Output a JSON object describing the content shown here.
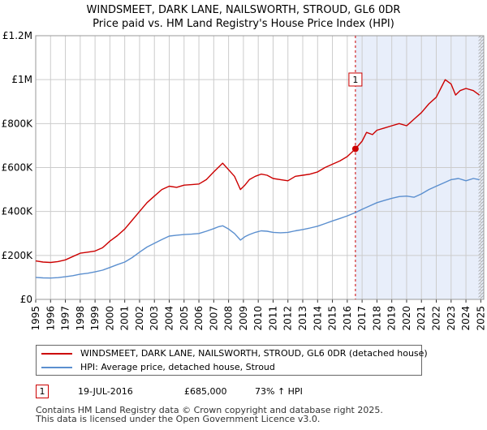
{
  "title_line1": "WINDSMEET, DARK LANE, NAILSWORTH, STROUD, GL6 0DR",
  "title_line2": "Price paid vs. HM Land Registry's House Price Index (HPI)",
  "colors": {
    "property": "#cc0000",
    "hpi": "#5b8fcf",
    "shade": "#e8eefa",
    "grid": "#cccccc"
  },
  "chart_data": {
    "type": "line",
    "x_range": [
      1995,
      2025.2
    ],
    "ylim": [
      0,
      1200000
    ],
    "y_ticks": [
      {
        "value": 0,
        "label": "£0"
      },
      {
        "value": 200000,
        "label": "£200K"
      },
      {
        "value": 400000,
        "label": "£400K"
      },
      {
        "value": 600000,
        "label": "£600K"
      },
      {
        "value": 800000,
        "label": "£800K"
      },
      {
        "value": 1000000,
        "label": "£1M"
      },
      {
        "value": 1200000,
        "label": "£1.2M"
      }
    ],
    "x_ticks": [
      "1995",
      "1996",
      "1997",
      "1998",
      "1999",
      "2000",
      "2001",
      "2002",
      "2003",
      "2004",
      "2005",
      "2006",
      "2007",
      "2008",
      "2009",
      "2010",
      "2011",
      "2012",
      "2013",
      "2014",
      "2015",
      "2016",
      "2017",
      "2018",
      "2019",
      "2020",
      "2021",
      "2022",
      "2023",
      "2024",
      "2025"
    ],
    "shaded_from": 2016.55,
    "hatch_from": 2024.85,
    "series": [
      {
        "name": "WINDSMEET, DARK LANE, NAILSWORTH, STROUD, GL6 0DR (detached house)",
        "color": "#cc0000",
        "x": [
          1995.0,
          1995.5,
          1996.0,
          1996.5,
          1997.0,
          1997.5,
          1998.0,
          1998.5,
          1999.0,
          1999.5,
          2000.0,
          2000.5,
          2001.0,
          2001.5,
          2002.0,
          2002.5,
          2003.0,
          2003.5,
          2004.0,
          2004.5,
          2005.0,
          2005.5,
          2006.0,
          2006.5,
          2007.0,
          2007.3,
          2007.6,
          2008.0,
          2008.4,
          2008.8,
          2009.1,
          2009.4,
          2009.8,
          2010.2,
          2010.6,
          2011.0,
          2011.5,
          2012.0,
          2012.5,
          2013.0,
          2013.5,
          2014.0,
          2014.5,
          2015.0,
          2015.5,
          2016.0,
          2016.55,
          2017.0,
          2017.3,
          2017.7,
          2018.0,
          2018.5,
          2019.0,
          2019.5,
          2020.0,
          2020.5,
          2021.0,
          2021.5,
          2022.0,
          2022.3,
          2022.6,
          2023.0,
          2023.3,
          2023.6,
          2024.0,
          2024.5,
          2024.9
        ],
        "values": [
          175000,
          170000,
          168000,
          172000,
          180000,
          195000,
          210000,
          215000,
          220000,
          235000,
          265000,
          290000,
          320000,
          360000,
          400000,
          440000,
          470000,
          500000,
          515000,
          510000,
          520000,
          522000,
          525000,
          545000,
          580000,
          600000,
          620000,
          590000,
          560000,
          500000,
          520000,
          545000,
          560000,
          570000,
          565000,
          550000,
          545000,
          540000,
          560000,
          565000,
          570000,
          580000,
          600000,
          615000,
          630000,
          650000,
          685000,
          720000,
          760000,
          750000,
          770000,
          780000,
          790000,
          800000,
          790000,
          820000,
          850000,
          890000,
          920000,
          960000,
          1000000,
          980000,
          930000,
          950000,
          960000,
          950000,
          930000
        ]
      },
      {
        "name": "HPI: Average price, detached house, Stroud",
        "color": "#5b8fcf",
        "x": [
          1995.0,
          1995.5,
          1996.0,
          1996.5,
          1997.0,
          1997.5,
          1998.0,
          1998.5,
          1999.0,
          1999.5,
          2000.0,
          2000.5,
          2001.0,
          2001.5,
          2002.0,
          2002.5,
          2003.0,
          2003.5,
          2004.0,
          2004.5,
          2005.0,
          2005.5,
          2006.0,
          2006.5,
          2007.0,
          2007.3,
          2007.6,
          2008.0,
          2008.4,
          2008.8,
          2009.1,
          2009.4,
          2009.8,
          2010.2,
          2010.6,
          2011.0,
          2011.5,
          2012.0,
          2012.5,
          2013.0,
          2013.5,
          2014.0,
          2014.5,
          2015.0,
          2015.5,
          2016.0,
          2016.55,
          2017.0,
          2017.5,
          2018.0,
          2018.5,
          2019.0,
          2019.5,
          2020.0,
          2020.5,
          2021.0,
          2021.5,
          2022.0,
          2022.5,
          2023.0,
          2023.5,
          2024.0,
          2024.5,
          2024.9
        ],
        "values": [
          100000,
          98000,
          97000,
          99000,
          103000,
          108000,
          115000,
          119000,
          125000,
          133000,
          145000,
          158000,
          170000,
          190000,
          215000,
          238000,
          255000,
          272000,
          288000,
          292000,
          295000,
          297000,
          300000,
          310000,
          322000,
          330000,
          335000,
          320000,
          300000,
          270000,
          285000,
          295000,
          305000,
          312000,
          310000,
          305000,
          303000,
          305000,
          312000,
          318000,
          325000,
          333000,
          345000,
          357000,
          368000,
          380000,
          395000,
          410000,
          425000,
          440000,
          450000,
          460000,
          468000,
          470000,
          465000,
          480000,
          500000,
          515000,
          530000,
          545000,
          550000,
          540000,
          550000,
          545000
        ]
      }
    ],
    "sale_marker": {
      "x": 2016.55,
      "value": 685000,
      "label": "1"
    },
    "legend_position": "bottom"
  },
  "legend": {
    "property_label": "WINDSMEET, DARK LANE, NAILSWORTH, STROUD, GL6 0DR (detached house)",
    "hpi_label": "HPI: Average price, detached house, Stroud"
  },
  "annotation": {
    "num": "1",
    "date": "19-JUL-2016",
    "price": "£685,000",
    "hpi_change": "73% ↑ HPI"
  },
  "footer_line1": "Contains HM Land Registry data © Crown copyright and database right 2025.",
  "footer_line2": "This data is licensed under the Open Government Licence v3.0."
}
